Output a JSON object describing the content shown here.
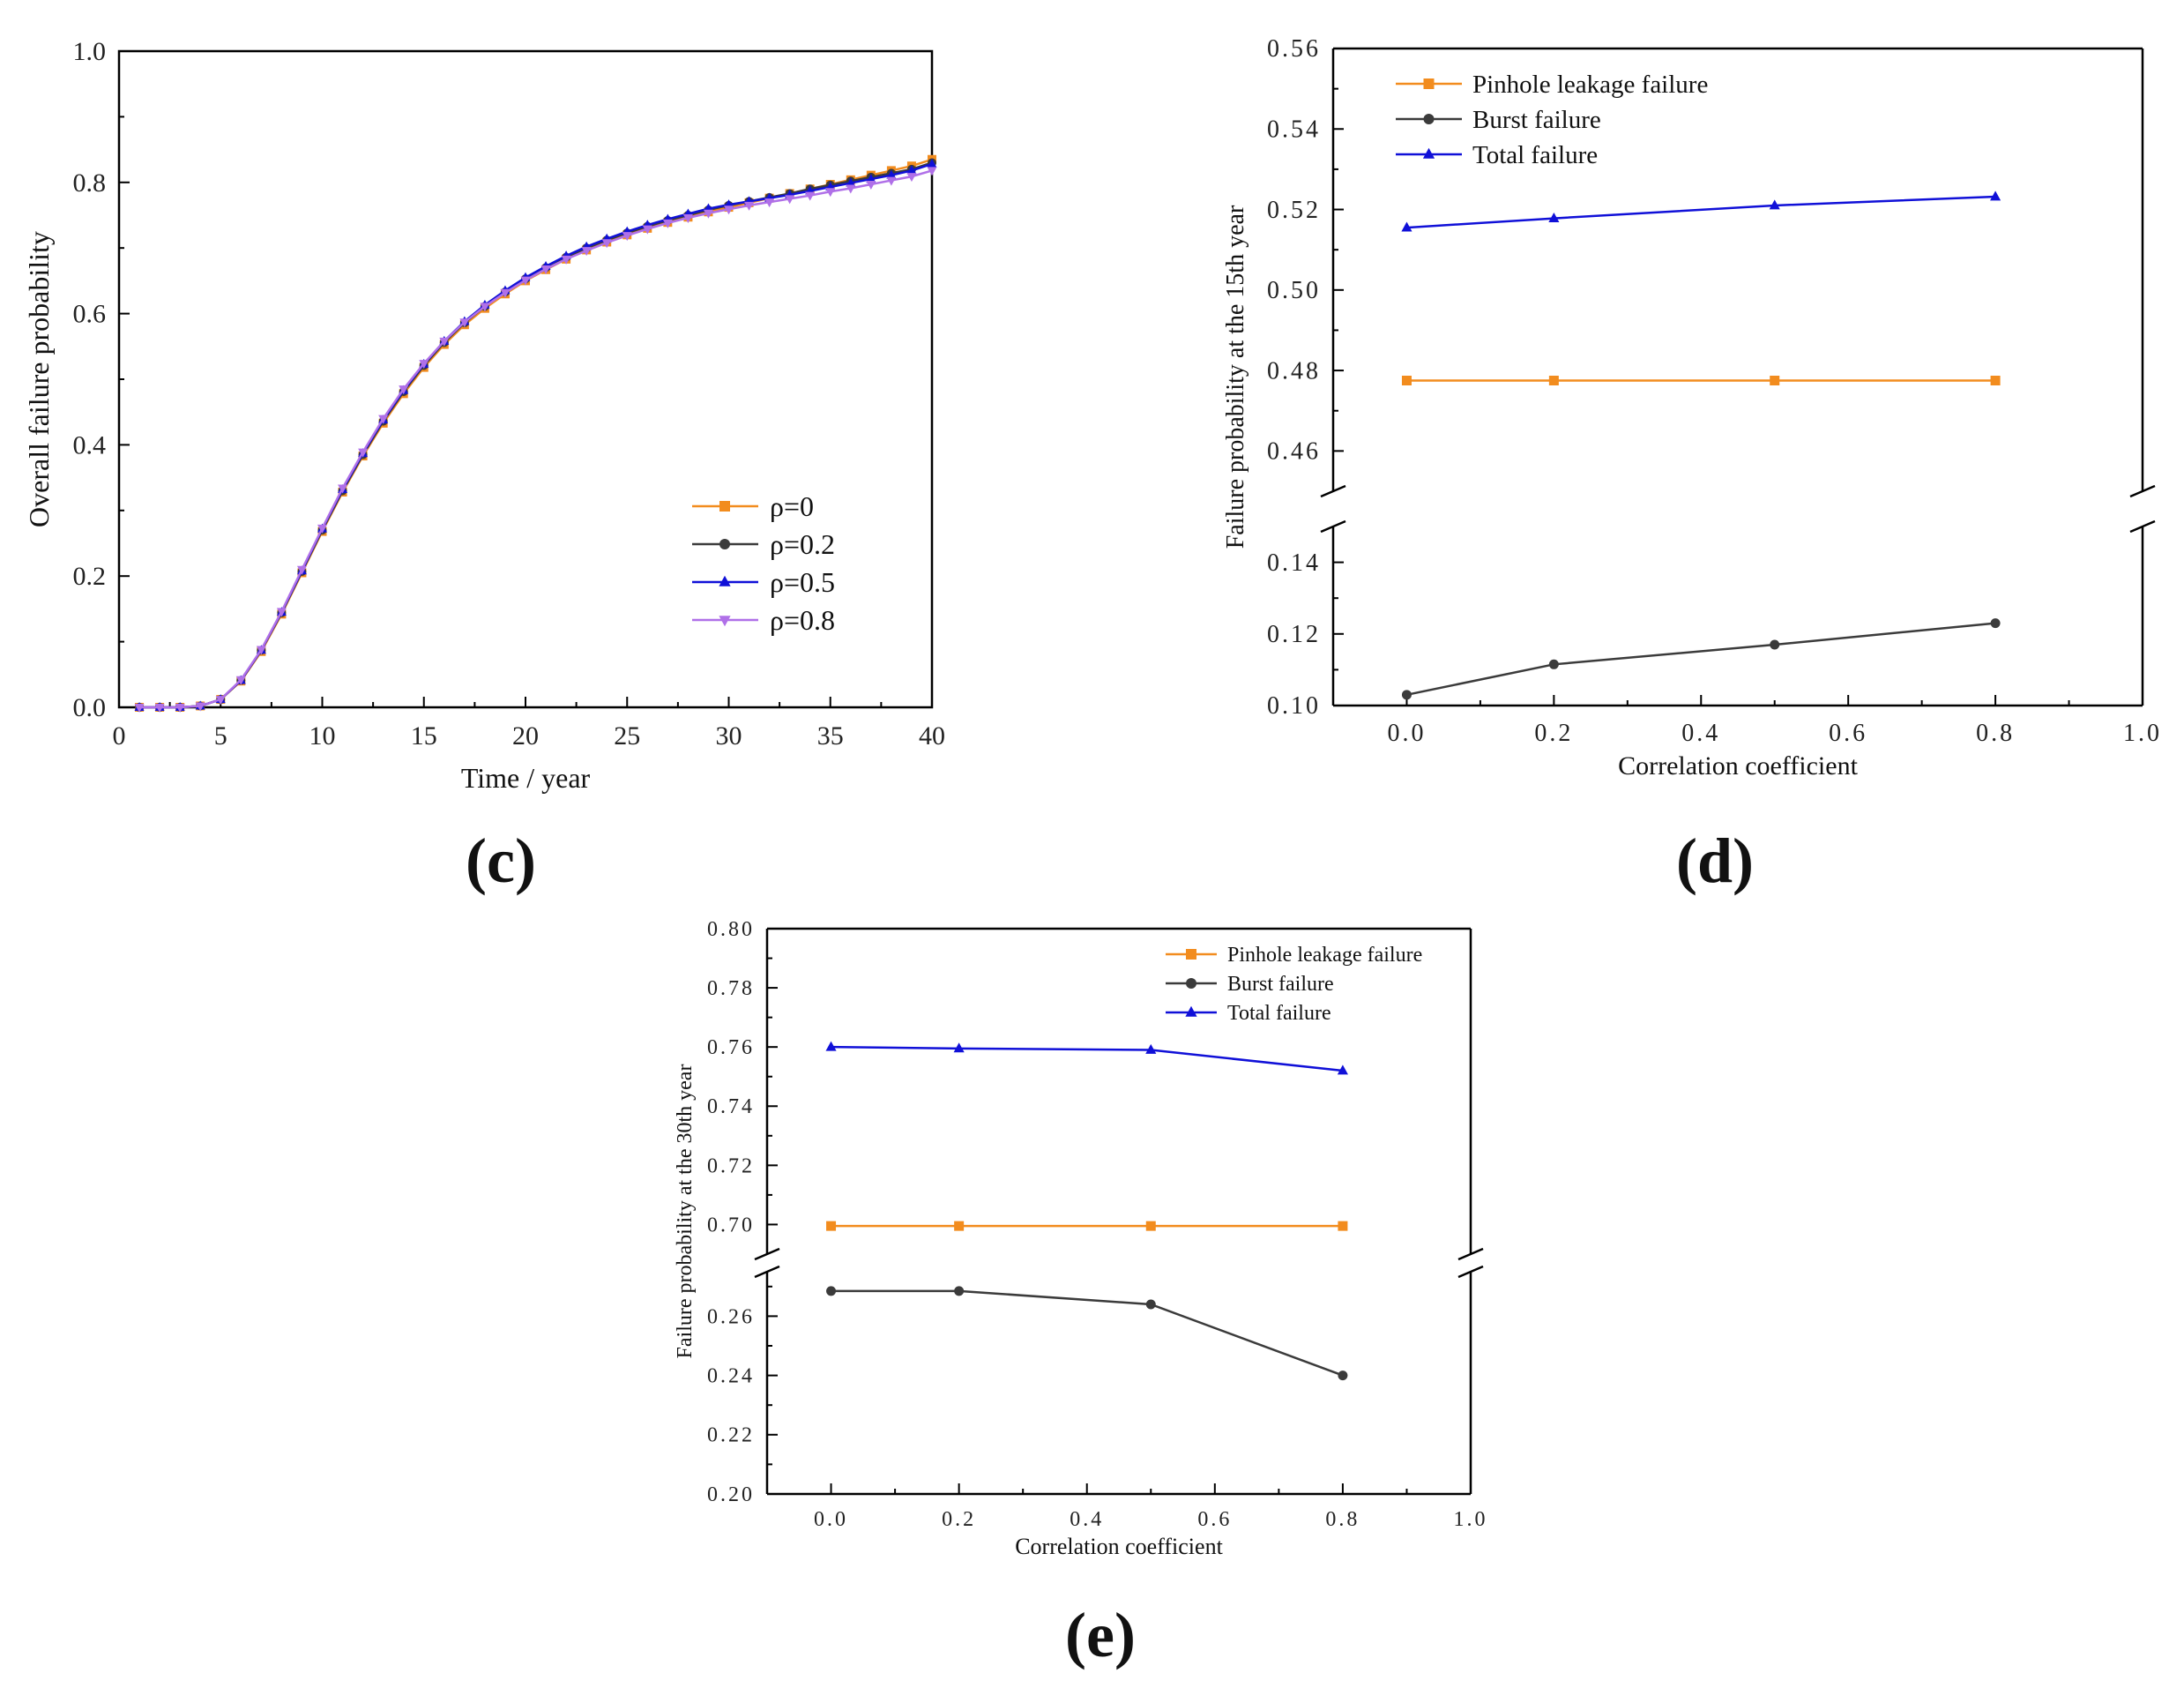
{
  "panels": {
    "c": "(c)",
    "d": "(d)",
    "e": "(e)"
  },
  "colors": {
    "orange": "#f28c1e",
    "gray": "#3b3b3b",
    "blue": "#1010d8",
    "purple": "#b070e8"
  },
  "chart_data": [
    {
      "id": "c",
      "type": "line",
      "xlabel": "Time / year",
      "ylabel": "Overall failure probability",
      "xlim": [
        0,
        40
      ],
      "ylim": [
        0,
        1
      ],
      "xticks": [
        "0",
        "5",
        "10",
        "15",
        "20",
        "25",
        "30",
        "35",
        "40"
      ],
      "yticks": [
        "0.0",
        "0.2",
        "0.4",
        "0.6",
        "0.8",
        "1.0"
      ],
      "legend_position": "bottom-right",
      "x": [
        1,
        2,
        3,
        4,
        5,
        6,
        7,
        8,
        9,
        10,
        11,
        12,
        13,
        14,
        15,
        16,
        17,
        18,
        19,
        20,
        21,
        22,
        23,
        24,
        25,
        26,
        27,
        28,
        29,
        30,
        31,
        32,
        33,
        34,
        35,
        36,
        37,
        38,
        39,
        40
      ],
      "series": [
        {
          "name": "ρ=0",
          "color": "orange",
          "marker": "square",
          "values": [
            0,
            0,
            0,
            0.002,
            0.012,
            0.04,
            0.085,
            0.142,
            0.205,
            0.268,
            0.328,
            0.383,
            0.433,
            0.478,
            0.518,
            0.553,
            0.583,
            0.608,
            0.63,
            0.65,
            0.667,
            0.683,
            0.697,
            0.709,
            0.72,
            0.73,
            0.739,
            0.747,
            0.755,
            0.762,
            0.769,
            0.776,
            0.783,
            0.79,
            0.797,
            0.804,
            0.811,
            0.818,
            0.825,
            0.835
          ]
        },
        {
          "name": "ρ=0.2",
          "color": "gray",
          "marker": "circle",
          "values": [
            0,
            0,
            0,
            0.002,
            0.012,
            0.041,
            0.087,
            0.144,
            0.207,
            0.27,
            0.33,
            0.385,
            0.436,
            0.481,
            0.521,
            0.556,
            0.586,
            0.611,
            0.633,
            0.653,
            0.67,
            0.686,
            0.7,
            0.712,
            0.723,
            0.733,
            0.742,
            0.75,
            0.758,
            0.765,
            0.771,
            0.777,
            0.783,
            0.79,
            0.796,
            0.802,
            0.808,
            0.814,
            0.82,
            0.83
          ]
        },
        {
          "name": "ρ=0.5",
          "color": "blue",
          "marker": "triangle-up",
          "values": [
            0,
            0,
            0,
            0.002,
            0.012,
            0.041,
            0.087,
            0.145,
            0.208,
            0.272,
            0.332,
            0.387,
            0.438,
            0.483,
            0.523,
            0.558,
            0.588,
            0.613,
            0.635,
            0.655,
            0.672,
            0.688,
            0.702,
            0.714,
            0.725,
            0.735,
            0.744,
            0.752,
            0.76,
            0.766,
            0.771,
            0.776,
            0.781,
            0.787,
            0.793,
            0.799,
            0.805,
            0.811,
            0.818,
            0.828
          ]
        },
        {
          "name": "ρ=0.8",
          "color": "purple",
          "marker": "triangle-down",
          "values": [
            0,
            0,
            0,
            0.002,
            0.012,
            0.042,
            0.088,
            0.146,
            0.21,
            0.273,
            0.334,
            0.389,
            0.44,
            0.485,
            0.524,
            0.558,
            0.587,
            0.611,
            0.632,
            0.651,
            0.668,
            0.683,
            0.696,
            0.708,
            0.719,
            0.729,
            0.738,
            0.746,
            0.753,
            0.759,
            0.765,
            0.77,
            0.775,
            0.78,
            0.786,
            0.791,
            0.797,
            0.803,
            0.809,
            0.818
          ]
        }
      ]
    },
    {
      "id": "d",
      "type": "line",
      "xlabel": "Correlation coefficient",
      "ylabel": "Failure probability at the 15th year",
      "xlim": [
        -0.1,
        1.0
      ],
      "ylim_upper": [
        0.45,
        0.56
      ],
      "ylim_lower": [
        0.1,
        0.15
      ],
      "xticks": [
        "0.0",
        "0.2",
        "0.4",
        "0.6",
        "0.8",
        "1.0"
      ],
      "yticks_upper": [
        "0.46",
        "0.48",
        "0.50",
        "0.52",
        "0.54",
        "0.56"
      ],
      "yticks_lower": [
        "0.10",
        "0.12",
        "0.14"
      ],
      "legend_position": "top-left",
      "x": [
        0.0,
        0.2,
        0.5,
        0.8
      ],
      "series": [
        {
          "name": "Pinhole leakage failure",
          "color": "orange",
          "marker": "square",
          "values": [
            0.4775,
            0.4775,
            0.4775,
            0.4775
          ]
        },
        {
          "name": "Burst failure",
          "color": "gray",
          "marker": "circle",
          "values": [
            0.103,
            0.1115,
            0.117,
            0.123
          ]
        },
        {
          "name": "Total failure",
          "color": "blue",
          "marker": "triangle-up",
          "values": [
            0.5155,
            0.5178,
            0.521,
            0.5232
          ]
        }
      ]
    },
    {
      "id": "e",
      "type": "line",
      "xlabel": "Correlation coefficient",
      "ylabel": "Failure probability at the 30th year",
      "xlim": [
        -0.1,
        1.0
      ],
      "ylim_upper": [
        0.69,
        0.8
      ],
      "ylim_lower": [
        0.2,
        0.275
      ],
      "xticks": [
        "0.0",
        "0.2",
        "0.4",
        "0.6",
        "0.8",
        "1.0"
      ],
      "yticks_upper": [
        "0.70",
        "0.72",
        "0.74",
        "0.76",
        "0.78",
        "0.80"
      ],
      "yticks_lower": [
        "0.20",
        "0.22",
        "0.24",
        "0.26"
      ],
      "legend_position": "top-right",
      "x": [
        0.0,
        0.2,
        0.5,
        0.8
      ],
      "series": [
        {
          "name": "Pinhole leakage failure",
          "color": "orange",
          "marker": "square",
          "values": [
            0.6995,
            0.6995,
            0.6995,
            0.6995
          ]
        },
        {
          "name": "Burst failure",
          "color": "gray",
          "marker": "circle",
          "values": [
            0.2685,
            0.2685,
            0.264,
            0.24
          ]
        },
        {
          "name": "Total failure",
          "color": "blue",
          "marker": "triangle-up",
          "values": [
            0.76,
            0.7595,
            0.759,
            0.752
          ]
        }
      ]
    }
  ]
}
